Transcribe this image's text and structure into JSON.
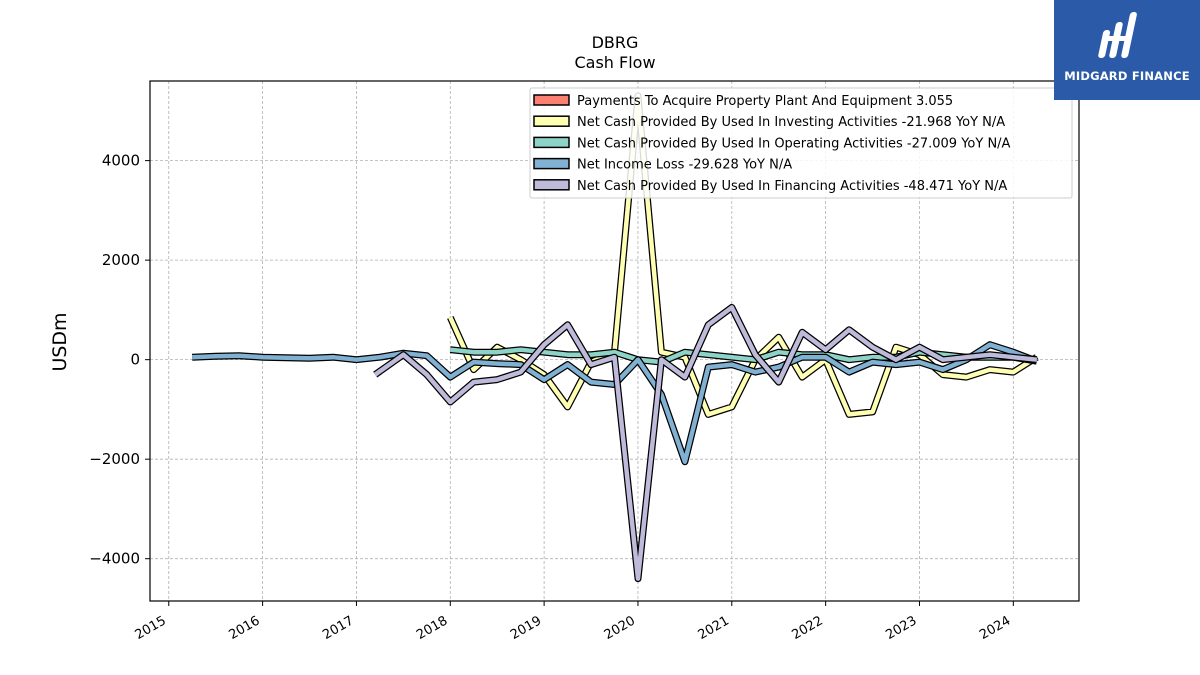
{
  "brand": {
    "name": "MIDGARD FINANCE",
    "color": "#2a5aa8"
  },
  "chart_data": {
    "type": "line",
    "title": "DBRG",
    "subtitle": "Cash Flow",
    "xlabel": "",
    "ylabel": "USDm",
    "xlim": [
      2014.8,
      2024.7
    ],
    "ylim": [
      -4850,
      5600
    ],
    "xticks": [
      2015,
      2016,
      2017,
      2018,
      2019,
      2020,
      2021,
      2022,
      2023,
      2024
    ],
    "xtick_labels": [
      "2015",
      "2016",
      "2017",
      "2018",
      "2019",
      "2020",
      "2021",
      "2022",
      "2023",
      "2024"
    ],
    "yticks": [
      -4000,
      -2000,
      0,
      2000,
      4000
    ],
    "ytick_labels": [
      "−4000",
      "−2000",
      "0",
      "2000",
      "4000"
    ],
    "grid": true,
    "legend_position": "top-right",
    "series": [
      {
        "name": "Payments To Acquire Property Plant And Equipment",
        "legend_label": "Payments To Acquire Property Plant And Equipment  3.055",
        "color": "#fb8072",
        "x": [],
        "y": []
      },
      {
        "name": "Net Cash Provided By Used In Investing Activities",
        "legend_label": "Net Cash Provided By Used In Investing Activities  -21.968 YoY N/A",
        "color": "#ffffb3",
        "x": [
          2018.0,
          2018.25,
          2018.5,
          2018.75,
          2019.0,
          2019.25,
          2019.5,
          2019.75,
          2020.0,
          2020.25,
          2020.5,
          2020.75,
          2021.0,
          2021.25,
          2021.5,
          2021.75,
          2022.0,
          2022.25,
          2022.5,
          2022.75,
          2023.0,
          2023.25,
          2023.5,
          2023.75,
          2024.0,
          2024.25
        ],
        "y": [
          850,
          -200,
          250,
          0,
          -300,
          -950,
          -50,
          150,
          5300,
          150,
          50,
          -1100,
          -950,
          0,
          450,
          -350,
          0,
          -1100,
          -1050,
          250,
          100,
          -300,
          -350,
          -200,
          -250,
          50
        ]
      },
      {
        "name": "Net Cash Provided By Used In Operating Activities",
        "legend_label": "Net Cash Provided By Used In Operating Activities  -27.009 YoY N/A",
        "color": "#8dd3c7",
        "x": [
          2018.0,
          2018.25,
          2018.5,
          2018.75,
          2019.0,
          2019.25,
          2019.5,
          2019.75,
          2020.0,
          2020.25,
          2020.5,
          2020.75,
          2021.0,
          2021.25,
          2021.5,
          2021.75,
          2022.0,
          2022.25,
          2022.5,
          2022.75,
          2023.0,
          2023.25,
          2023.5,
          2023.75,
          2024.0,
          2024.25
        ],
        "y": [
          200,
          150,
          150,
          200,
          150,
          100,
          100,
          150,
          0,
          -50,
          150,
          100,
          50,
          0,
          150,
          100,
          100,
          0,
          50,
          50,
          150,
          100,
          50,
          50,
          50,
          -30
        ]
      },
      {
        "name": "Net Income Loss",
        "legend_label": "Net Income Loss  -29.628 YoY N/A",
        "color": "#80b1d3",
        "x": [
          2015.25,
          2015.5,
          2015.75,
          2016.0,
          2016.25,
          2016.5,
          2016.75,
          2017.0,
          2017.25,
          2017.5,
          2017.75,
          2018.0,
          2018.25,
          2018.5,
          2018.75,
          2019.0,
          2019.25,
          2019.5,
          2019.75,
          2020.0,
          2020.25,
          2020.5,
          2020.75,
          2021.0,
          2021.25,
          2021.5,
          2021.75,
          2022.0,
          2022.25,
          2022.5,
          2022.75,
          2023.0,
          2023.25,
          2023.5,
          2023.75,
          2024.0,
          2024.25
        ],
        "y": [
          50,
          70,
          80,
          50,
          40,
          30,
          50,
          0,
          50,
          130,
          80,
          -350,
          -50,
          -80,
          -100,
          -400,
          -100,
          -450,
          -500,
          0,
          -700,
          -2050,
          -150,
          -100,
          -250,
          -150,
          50,
          50,
          -250,
          -50,
          -100,
          -50,
          -200,
          0,
          300,
          150,
          -30
        ]
      },
      {
        "name": "Net Cash Provided By Used In Financing Activities",
        "legend_label": "Net Cash Provided By Used In Financing Activities  -48.471 YoY N/A",
        "color": "#bebada",
        "x": [
          2017.2,
          2017.5,
          2017.75,
          2018.0,
          2018.25,
          2018.5,
          2018.75,
          2019.0,
          2019.25,
          2019.5,
          2019.75,
          2020.0,
          2020.25,
          2020.5,
          2020.75,
          2021.0,
          2021.25,
          2021.5,
          2021.75,
          2022.0,
          2022.25,
          2022.5,
          2022.75,
          2023.0,
          2023.25,
          2023.5,
          2023.75,
          2024.0,
          2024.25
        ],
        "y": [
          -300,
          100,
          -300,
          -850,
          -450,
          -400,
          -250,
          300,
          700,
          -100,
          50,
          -4400,
          0,
          -350,
          700,
          1050,
          100,
          -450,
          550,
          200,
          600,
          250,
          0,
          250,
          0,
          50,
          100,
          50,
          0
        ]
      }
    ]
  }
}
